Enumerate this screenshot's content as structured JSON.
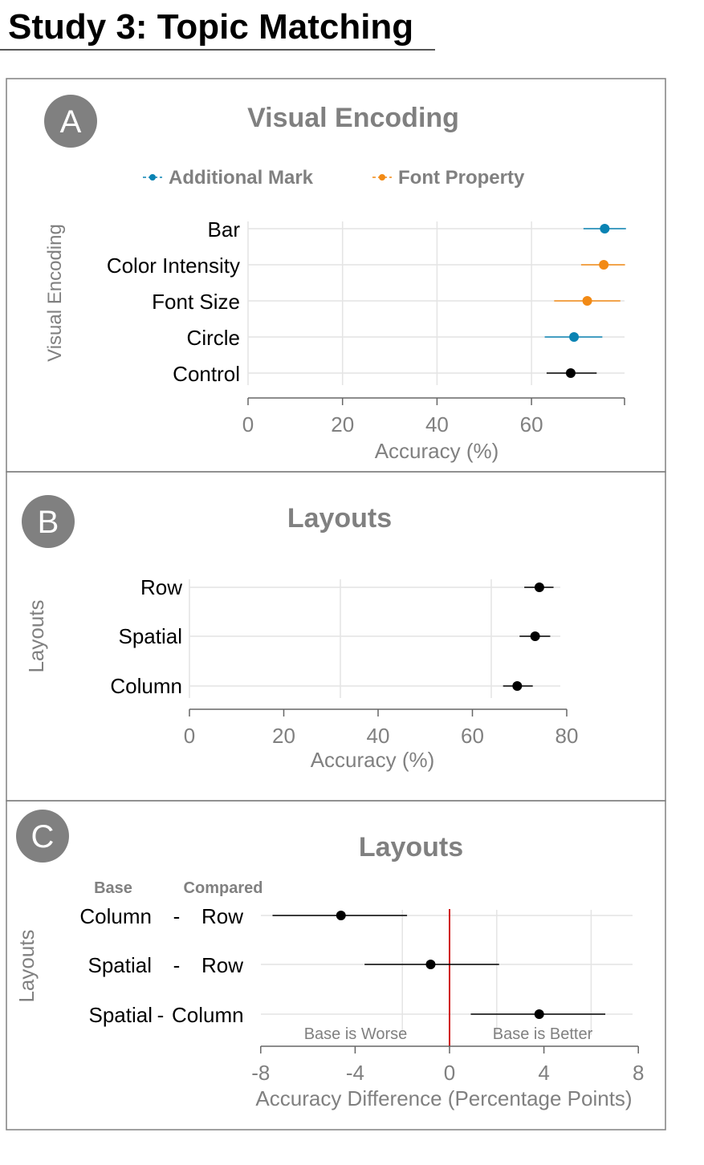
{
  "page_title": "Study 3: Topic Matching",
  "colors": {
    "additional_mark": "#0a83b3",
    "font_property": "#f28a15",
    "control": "#000000",
    "zero_line": "#d01010",
    "panel_text": "#808080",
    "panel_border": "#808080",
    "grid": "#e4e4e4",
    "badge": "#808080"
  },
  "chart_data": [
    {
      "panel": "A",
      "type": "scatter",
      "title": "Visual Encoding",
      "xlabel": "Accuracy (%)",
      "ylabel": "Visual Encoding",
      "xlim": [
        0,
        80
      ],
      "xticks": [
        0,
        20,
        40,
        60
      ],
      "legend_position": "top",
      "legend": [
        {
          "name": "Additional Mark",
          "color": "#0a83b3"
        },
        {
          "name": "Font Property",
          "color": "#f28a15"
        }
      ],
      "categories": [
        "Bar",
        "Color Intensity",
        "Font Size",
        "Circle",
        "Control"
      ],
      "points": [
        {
          "label": "Bar",
          "value": 75.5,
          "ci": [
            71.0,
            80.0
          ],
          "group": "additional_mark"
        },
        {
          "label": "Color Intensity",
          "value": 75.3,
          "ci": [
            70.5,
            79.8
          ],
          "group": "font_property"
        },
        {
          "label": "Font Size",
          "value": 71.8,
          "ci": [
            64.8,
            78.8
          ],
          "group": "font_property"
        },
        {
          "label": "Circle",
          "value": 69.0,
          "ci": [
            62.8,
            75.0
          ],
          "group": "additional_mark"
        },
        {
          "label": "Control",
          "value": 68.3,
          "ci": [
            63.2,
            73.8
          ],
          "group": "control"
        }
      ]
    },
    {
      "panel": "B",
      "type": "scatter",
      "title": "Layouts",
      "xlabel": "Accuracy (%)",
      "ylabel": "Layouts",
      "xlim": [
        0,
        80
      ],
      "xticks": [
        0,
        20,
        40,
        60,
        80
      ],
      "categories": [
        "Row",
        "Spatial",
        "Column"
      ],
      "points": [
        {
          "label": "Row",
          "value": 74.2,
          "ci": [
            71.0,
            77.2
          ],
          "group": "control"
        },
        {
          "label": "Spatial",
          "value": 73.3,
          "ci": [
            70.0,
            76.5
          ],
          "group": "control"
        },
        {
          "label": "Column",
          "value": 69.5,
          "ci": [
            66.5,
            72.8
          ],
          "group": "control"
        }
      ]
    },
    {
      "panel": "C",
      "type": "scatter",
      "title": "Layouts",
      "xlabel": "Accuracy Difference (Percentage Points)",
      "ylabel": "Layouts",
      "xlim": [
        -8,
        8
      ],
      "xticks": [
        -8,
        -4,
        0,
        4,
        8
      ],
      "column_headers": {
        "base": "Base",
        "compared": "Compared"
      },
      "annotations": {
        "left": "Base is Worse",
        "right": "Base is Better"
      },
      "rows": [
        {
          "base": "Column",
          "separator": "-",
          "compared": "Row",
          "value": -4.6,
          "ci": [
            -7.5,
            -1.8
          ]
        },
        {
          "base": "Spatial",
          "separator": "-",
          "compared": "Row",
          "value": -0.8,
          "ci": [
            -3.6,
            2.1
          ]
        },
        {
          "base": "Spatial",
          "separator": "-",
          "compared": "Column",
          "value": 3.8,
          "ci": [
            0.9,
            6.6
          ]
        }
      ]
    }
  ]
}
